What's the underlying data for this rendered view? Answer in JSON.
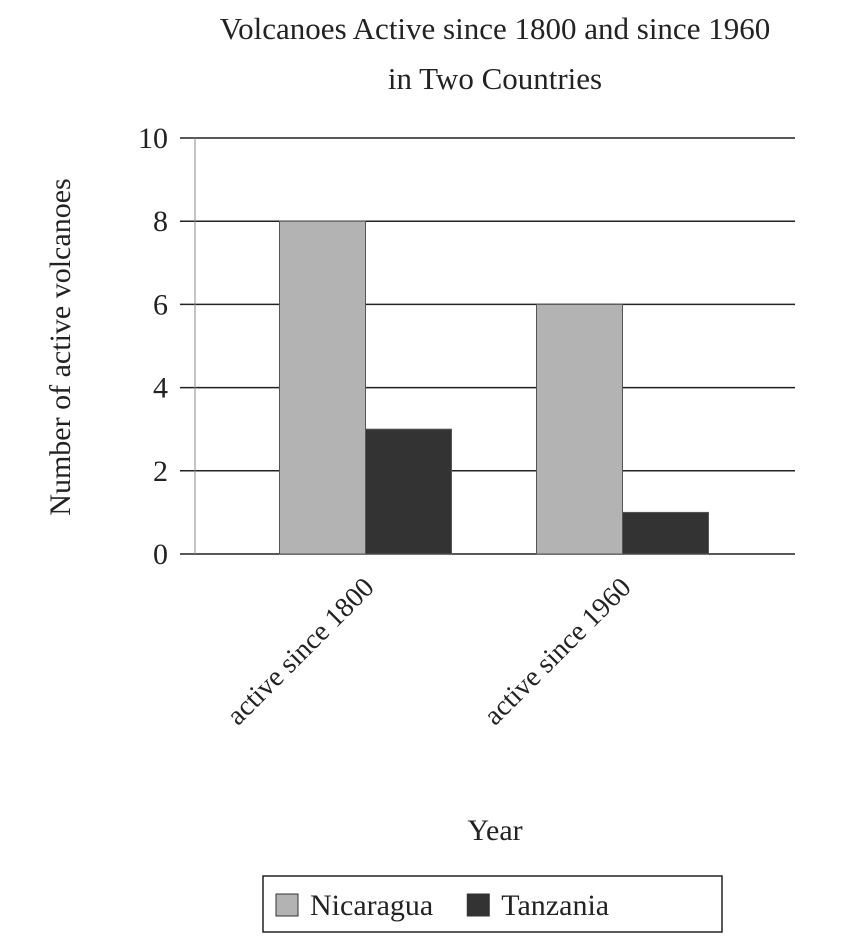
{
  "chart_data": {
    "type": "bar",
    "title": "Volcanoes Active since 1800 and since 1960 in Two Countries",
    "x_label": "Year",
    "y_label": "Number of active volcanoes",
    "categories": [
      "active since 1800",
      "active since 1960"
    ],
    "series": [
      {
        "name": "Nicaragua",
        "color": "#b3b3b3",
        "values": [
          8,
          6
        ]
      },
      {
        "name": "Tanzania",
        "color": "#333333",
        "values": [
          3,
          1
        ]
      }
    ],
    "ylim": [
      0,
      10
    ],
    "yticks": [
      0,
      2,
      4,
      6,
      8,
      10
    ],
    "grid": true,
    "legend": "bottom"
  }
}
